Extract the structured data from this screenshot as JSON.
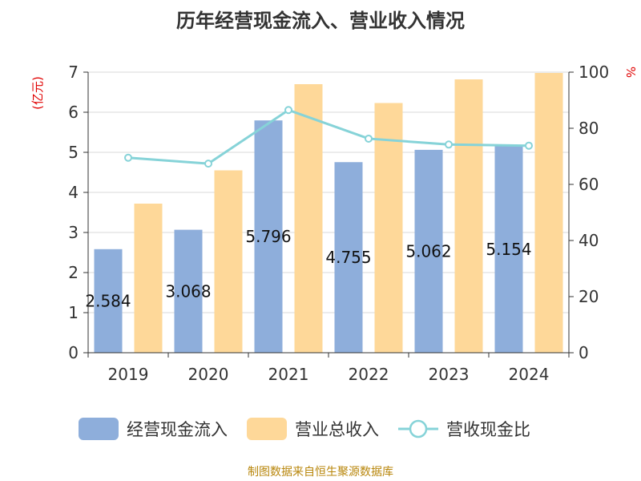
{
  "title": "历年经营现金流入、营业收入情况",
  "source": "制图数据来自恒生聚源数据库",
  "chart_data": {
    "type": "bar",
    "title": "历年经营现金流入、营业收入情况",
    "categories": [
      "2019",
      "2020",
      "2021",
      "2022",
      "2023",
      "2024"
    ],
    "y_left": {
      "unit": "(亿元)",
      "ylim": [
        0,
        7
      ],
      "ticks": [
        0,
        1,
        2,
        3,
        4,
        5,
        6,
        7
      ]
    },
    "y_right": {
      "unit": "%",
      "ylim": [
        0,
        100
      ],
      "ticks": [
        0,
        20,
        40,
        60,
        80,
        100
      ]
    },
    "series": [
      {
        "name": "经营现金流入",
        "type": "bar",
        "axis": "left",
        "color": "#8eaedb",
        "values": [
          2.584,
          3.068,
          5.796,
          4.755,
          5.062,
          5.154
        ],
        "labels": [
          "2.584",
          "3.068",
          "5.796",
          "4.755",
          "5.062",
          "5.154"
        ]
      },
      {
        "name": "营业总收入",
        "type": "bar",
        "axis": "left",
        "color": "#fed899",
        "values": [
          3.72,
          4.55,
          6.7,
          6.23,
          6.82,
          6.98
        ]
      },
      {
        "name": "营收现金比",
        "type": "line",
        "axis": "right",
        "color": "#86d3d8",
        "values": [
          69.5,
          67.4,
          86.5,
          76.3,
          74.2,
          73.8
        ]
      }
    ],
    "grid": true,
    "legend_position": "bottom"
  }
}
